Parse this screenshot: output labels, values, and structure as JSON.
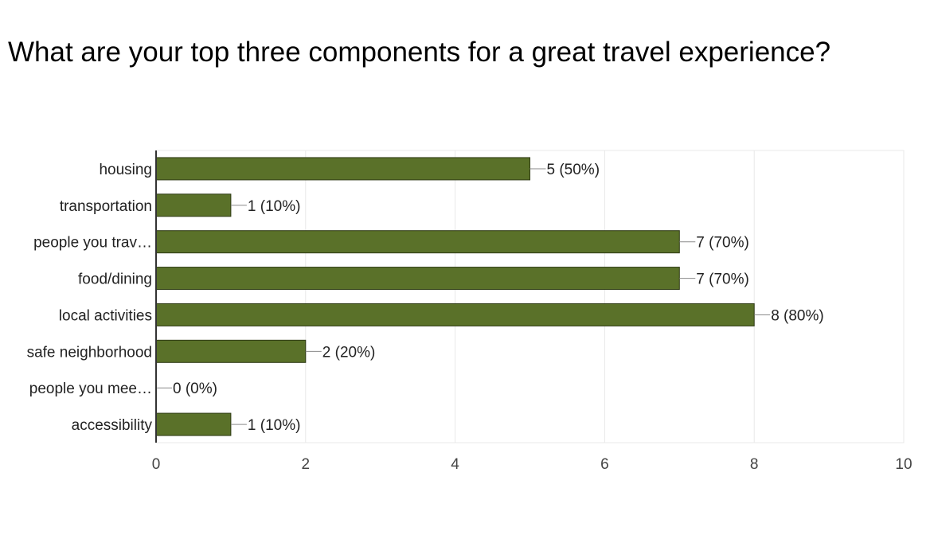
{
  "question": {
    "title": "What are your top three components for a great travel experience?"
  },
  "chart_data": {
    "type": "bar",
    "orientation": "horizontal",
    "title": "What are your top three components for a great travel experience?",
    "categories": [
      "housing",
      "transportation",
      "people you trav…",
      "food/dining",
      "local activities",
      "safe neighborhood",
      "people you mee…",
      "accessibility"
    ],
    "values": [
      5,
      1,
      7,
      7,
      8,
      2,
      0,
      1
    ],
    "data_labels": [
      "5 (50%)",
      "1 (10%)",
      "7 (70%)",
      "7 (70%)",
      "8 (80%)",
      "2 (20%)",
      "0 (0%)",
      "1 (10%)"
    ],
    "xlim": [
      0,
      10
    ],
    "xticks": [
      "0",
      "2",
      "4",
      "6",
      "8",
      "10"
    ],
    "grid": true,
    "legend": "none",
    "bar_color": "#5a7129",
    "xlabel": "",
    "ylabel": ""
  }
}
